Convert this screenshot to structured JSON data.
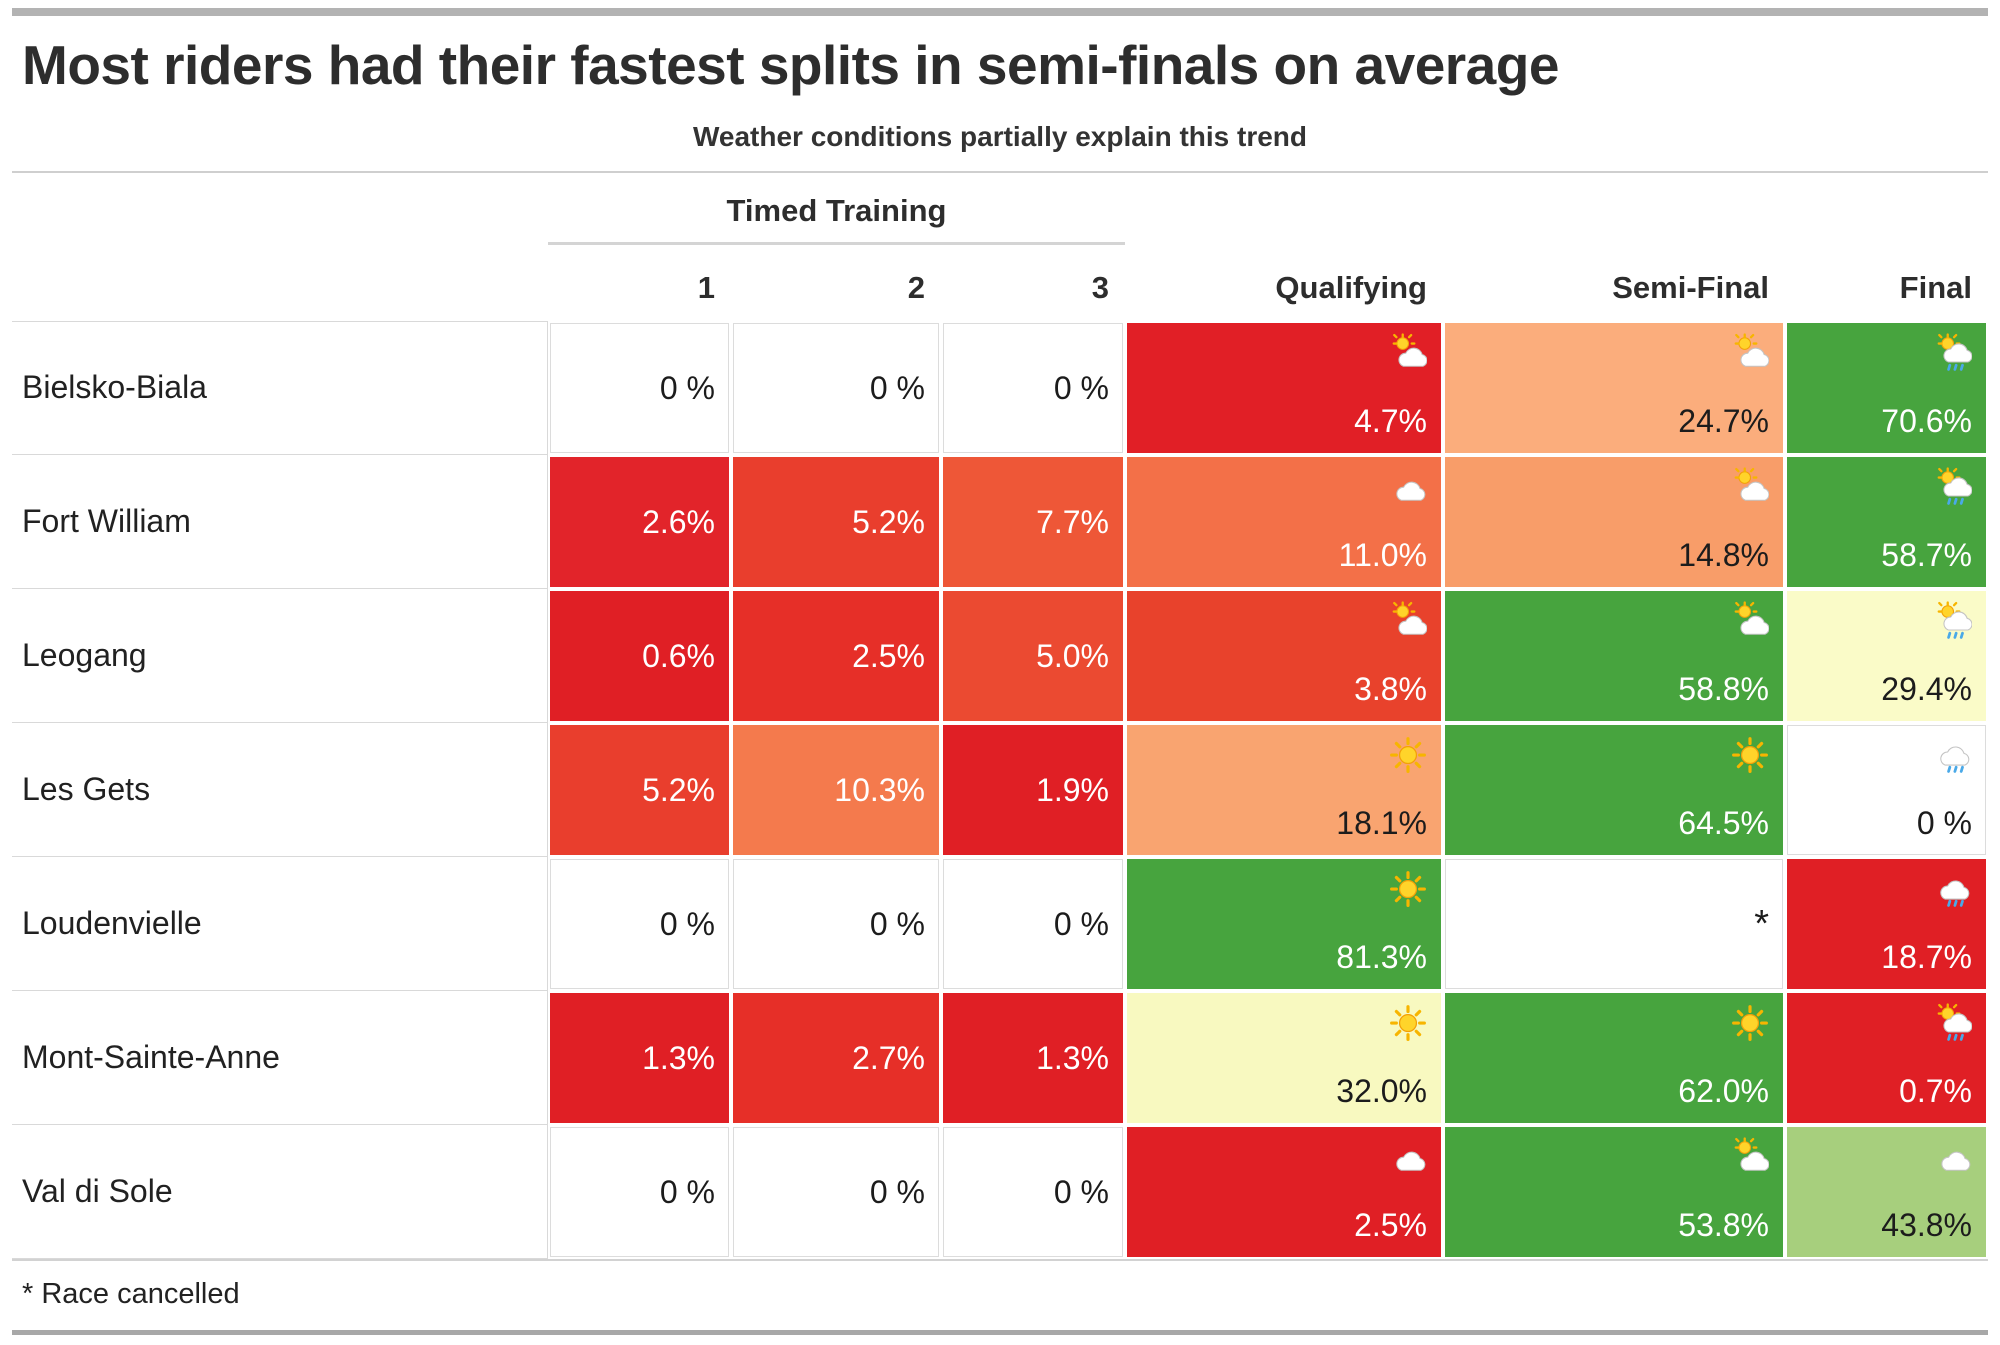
{
  "page": {
    "title": "Most riders had their fastest splits in semi-finals on average",
    "subtitle": "Weather conditions partially explain this trend",
    "footnote": "* Race cancelled"
  },
  "table": {
    "group_header": "Timed Training",
    "columns": [
      "1",
      "2",
      "3",
      "Qualifying",
      "Semi-Final",
      "Final"
    ],
    "rows": [
      {
        "label": "Bielsko-Biala",
        "cells": [
          {
            "text": "0 %",
            "bg": "#ffffff",
            "fg": "#1c1c1c",
            "icon": null
          },
          {
            "text": "0 %",
            "bg": "#ffffff",
            "fg": "#1c1c1c",
            "icon": null
          },
          {
            "text": "0 %",
            "bg": "#ffffff",
            "fg": "#1c1c1c",
            "icon": null
          },
          {
            "text": "4.7%",
            "bg": "#e11f26",
            "fg": "#ffffff",
            "icon": "sun-cloud"
          },
          {
            "text": "24.7%",
            "bg": "#fbad7c",
            "fg": "#1c1c1c",
            "icon": "sun-cloud"
          },
          {
            "text": "70.6%",
            "bg": "#47a43e",
            "fg": "#ffffff",
            "icon": "sun-rain"
          }
        ]
      },
      {
        "label": "Fort William",
        "cells": [
          {
            "text": "2.6%",
            "bg": "#e2242a",
            "fg": "#ffffff",
            "icon": null
          },
          {
            "text": "5.2%",
            "bg": "#e93e2d",
            "fg": "#ffffff",
            "icon": null
          },
          {
            "text": "7.7%",
            "bg": "#ee5737",
            "fg": "#ffffff",
            "icon": null
          },
          {
            "text": "11.0%",
            "bg": "#f37048",
            "fg": "#ffffff",
            "icon": "cloud"
          },
          {
            "text": "14.8%",
            "bg": "#f89d69",
            "fg": "#1c1c1c",
            "icon": "sun-cloud"
          },
          {
            "text": "58.7%",
            "bg": "#47a43e",
            "fg": "#ffffff",
            "icon": "sun-rain"
          }
        ]
      },
      {
        "label": "Leogang",
        "cells": [
          {
            "text": "0.6%",
            "bg": "#e01f25",
            "fg": "#ffffff",
            "icon": null
          },
          {
            "text": "2.5%",
            "bg": "#e62f28",
            "fg": "#ffffff",
            "icon": null
          },
          {
            "text": "5.0%",
            "bg": "#eb4a31",
            "fg": "#ffffff",
            "icon": null
          },
          {
            "text": "3.8%",
            "bg": "#e8422c",
            "fg": "#ffffff",
            "icon": "sun-cloud"
          },
          {
            "text": "58.8%",
            "bg": "#47a43e",
            "fg": "#ffffff",
            "icon": "sun-cloud"
          },
          {
            "text": "29.4%",
            "bg": "#fafbc8",
            "fg": "#1c1c1c",
            "icon": "sun-rain"
          }
        ]
      },
      {
        "label": "Les Gets",
        "cells": [
          {
            "text": "5.2%",
            "bg": "#e93e2d",
            "fg": "#ffffff",
            "icon": null
          },
          {
            "text": "10.3%",
            "bg": "#f47a4d",
            "fg": "#ffffff",
            "icon": null
          },
          {
            "text": "1.9%",
            "bg": "#e01f25",
            "fg": "#ffffff",
            "icon": null
          },
          {
            "text": "18.1%",
            "bg": "#f9a470",
            "fg": "#1c1c1c",
            "icon": "sun"
          },
          {
            "text": "64.5%",
            "bg": "#47a43e",
            "fg": "#ffffff",
            "icon": "sun"
          },
          {
            "text": "0 %",
            "bg": "#ffffff",
            "fg": "#1c1c1c",
            "icon": "rain"
          }
        ]
      },
      {
        "label": "Loudenvielle",
        "cells": [
          {
            "text": "0 %",
            "bg": "#ffffff",
            "fg": "#1c1c1c",
            "icon": null
          },
          {
            "text": "0 %",
            "bg": "#ffffff",
            "fg": "#1c1c1c",
            "icon": null
          },
          {
            "text": "0 %",
            "bg": "#ffffff",
            "fg": "#1c1c1c",
            "icon": null
          },
          {
            "text": "81.3%",
            "bg": "#47a43e",
            "fg": "#ffffff",
            "icon": "sun"
          },
          {
            "text": "*",
            "bg": "#ffffff",
            "fg": "#1c1c1c",
            "icon": null,
            "marker": true
          },
          {
            "text": "18.7%",
            "bg": "#e01f25",
            "fg": "#ffffff",
            "icon": "rain"
          }
        ]
      },
      {
        "label": "Mont-Sainte-Anne",
        "cells": [
          {
            "text": "1.3%",
            "bg": "#e01f25",
            "fg": "#ffffff",
            "icon": null
          },
          {
            "text": "2.7%",
            "bg": "#e62f28",
            "fg": "#ffffff",
            "icon": null
          },
          {
            "text": "1.3%",
            "bg": "#e01f25",
            "fg": "#ffffff",
            "icon": null
          },
          {
            "text": "32.0%",
            "bg": "#f8f9c0",
            "fg": "#1c1c1c",
            "icon": "sun"
          },
          {
            "text": "62.0%",
            "bg": "#47a43e",
            "fg": "#ffffff",
            "icon": "sun"
          },
          {
            "text": "0.7%",
            "bg": "#e01f25",
            "fg": "#ffffff",
            "icon": "sun-rain"
          }
        ]
      },
      {
        "label": "Val di Sole",
        "cells": [
          {
            "text": "0 %",
            "bg": "#ffffff",
            "fg": "#1c1c1c",
            "icon": null
          },
          {
            "text": "0 %",
            "bg": "#ffffff",
            "fg": "#1c1c1c",
            "icon": null
          },
          {
            "text": "0 %",
            "bg": "#ffffff",
            "fg": "#1c1c1c",
            "icon": null
          },
          {
            "text": "2.5%",
            "bg": "#e01f25",
            "fg": "#ffffff",
            "icon": "cloud"
          },
          {
            "text": "53.8%",
            "bg": "#47a43e",
            "fg": "#ffffff",
            "icon": "sun-cloud"
          },
          {
            "text": "43.8%",
            "bg": "#a7cf7d",
            "fg": "#1c1c1c",
            "icon": "cloud"
          }
        ]
      }
    ]
  },
  "chart_data": {
    "type": "heatmap",
    "title": "Most riders had their fastest splits in semi-finals on average",
    "subtitle": "Weather conditions partially explain this trend",
    "rows": [
      "Bielsko-Biala",
      "Fort William",
      "Leogang",
      "Les Gets",
      "Loudenvielle",
      "Mont-Sainte-Anne",
      "Val di Sole"
    ],
    "columns": [
      "Timed Training 1",
      "Timed Training 2",
      "Timed Training 3",
      "Qualifying",
      "Semi-Final",
      "Final"
    ],
    "values_percent": [
      [
        0,
        0,
        0,
        4.7,
        24.7,
        70.6
      ],
      [
        2.6,
        5.2,
        7.7,
        11.0,
        14.8,
        58.7
      ],
      [
        0.6,
        2.5,
        5.0,
        3.8,
        58.8,
        29.4
      ],
      [
        5.2,
        10.3,
        1.9,
        18.1,
        64.5,
        0
      ],
      [
        0,
        0,
        0,
        81.3,
        null,
        18.7
      ],
      [
        1.3,
        2.7,
        1.3,
        32.0,
        62.0,
        0.7
      ],
      [
        0,
        0,
        0,
        2.5,
        53.8,
        43.8
      ]
    ],
    "weather": [
      [
        null,
        null,
        null,
        "sun-cloud",
        "sun-cloud",
        "sun-rain"
      ],
      [
        null,
        null,
        null,
        "cloud",
        "sun-cloud",
        "sun-rain"
      ],
      [
        null,
        null,
        null,
        "sun-cloud",
        "sun-cloud",
        "sun-rain"
      ],
      [
        null,
        null,
        null,
        "sun",
        "sun",
        "rain"
      ],
      [
        null,
        null,
        null,
        "sun",
        null,
        "rain"
      ],
      [
        null,
        null,
        null,
        "sun",
        "sun",
        "sun-rain"
      ],
      [
        null,
        null,
        null,
        "cloud",
        "sun-cloud",
        "cloud"
      ]
    ],
    "annotations": {
      "cancelled": {
        "row": "Loudenvielle",
        "column": "Semi-Final",
        "marker": "*"
      }
    },
    "footnote": "* Race cancelled",
    "color_scale": "red (low) → pale yellow (mid) → green (high), white = 0 %",
    "legend_position": "none",
    "grid": "off"
  },
  "colors": {
    "accent_bar": "#b3b3b3",
    "hairline": "#d9d9d9",
    "green": "#47a43e",
    "light_green": "#a7cf7d",
    "red": "#e01f25",
    "pale_yellow": "#f8f9c0"
  }
}
